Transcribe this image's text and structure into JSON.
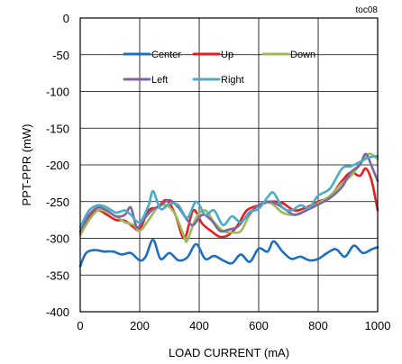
{
  "chart_data": {
    "type": "line",
    "tag": "toc08",
    "title": "",
    "xlabel": "LOAD CURRENT (mA)",
    "ylabel": "PPT-PPR (mW)",
    "xlim": [
      0,
      1000
    ],
    "ylim": [
      -400,
      0
    ],
    "xticks": [
      "0",
      "200",
      "400",
      "600",
      "800",
      "1000"
    ],
    "yticks": [
      "0",
      "-50",
      "-100",
      "-150",
      "-200",
      "-250",
      "-300",
      "-350",
      "-400"
    ],
    "grid": true,
    "legend_placement": "top-inside",
    "series": [
      {
        "name": "Center",
        "color": "#1f6fbf",
        "x": [
          0,
          20,
          50,
          80,
          110,
          140,
          170,
          200,
          220,
          245,
          270,
          300,
          330,
          360,
          390,
          420,
          450,
          480,
          510,
          540,
          570,
          600,
          630,
          650,
          680,
          710,
          740,
          770,
          800,
          830,
          860,
          890,
          920,
          950,
          980,
          1000
        ],
        "y": [
          -338,
          -320,
          -316,
          -318,
          -318,
          -322,
          -320,
          -330,
          -325,
          -302,
          -328,
          -320,
          -330,
          -326,
          -308,
          -328,
          -324,
          -330,
          -334,
          -322,
          -332,
          -314,
          -318,
          -304,
          -318,
          -328,
          -325,
          -330,
          -328,
          -320,
          -315,
          -325,
          -310,
          -320,
          -315,
          -312
        ]
      },
      {
        "name": "Up",
        "color": "#e81e1e",
        "x": [
          0,
          30,
          60,
          90,
          120,
          150,
          180,
          200,
          230,
          260,
          290,
          320,
          350,
          380,
          410,
          440,
          470,
          500,
          530,
          560,
          600,
          640,
          680,
          720,
          760,
          800,
          840,
          880,
          910,
          940,
          960,
          980,
          1000
        ],
        "y": [
          -292,
          -270,
          -262,
          -268,
          -275,
          -276,
          -285,
          -288,
          -262,
          -258,
          -248,
          -268,
          -300,
          -262,
          -280,
          -290,
          -298,
          -295,
          -282,
          -262,
          -255,
          -250,
          -252,
          -262,
          -258,
          -250,
          -243,
          -222,
          -210,
          -215,
          -205,
          -222,
          -262
        ]
      },
      {
        "name": "Down",
        "color": "#9bbb59",
        "x": [
          0,
          30,
          60,
          90,
          120,
          150,
          180,
          200,
          230,
          260,
          290,
          320,
          350,
          360,
          390,
          420,
          450,
          480,
          510,
          540,
          570,
          600,
          640,
          680,
          720,
          760,
          800,
          840,
          880,
          910,
          940,
          970,
          1000
        ],
        "y": [
          -296,
          -275,
          -262,
          -264,
          -270,
          -278,
          -282,
          -290,
          -275,
          -258,
          -255,
          -268,
          -298,
          -303,
          -272,
          -262,
          -278,
          -290,
          -292,
          -290,
          -268,
          -255,
          -252,
          -265,
          -268,
          -262,
          -252,
          -242,
          -225,
          -215,
          -200,
          -185,
          -192
        ]
      },
      {
        "name": "Left",
        "color": "#8064a2",
        "x": [
          0,
          30,
          60,
          90,
          120,
          150,
          170,
          190,
          210,
          240,
          270,
          300,
          330,
          360,
          380,
          410,
          440,
          470,
          500,
          530,
          560,
          600,
          640,
          680,
          720,
          760,
          800,
          840,
          880,
          910,
          940,
          960,
          980,
          1000
        ],
        "y": [
          -290,
          -268,
          -258,
          -262,
          -270,
          -268,
          -258,
          -285,
          -276,
          -262,
          -255,
          -248,
          -258,
          -275,
          -282,
          -268,
          -275,
          -290,
          -288,
          -284,
          -270,
          -255,
          -250,
          -258,
          -268,
          -262,
          -254,
          -245,
          -230,
          -210,
          -200,
          -185,
          -202,
          -222
        ]
      },
      {
        "name": "Right",
        "color": "#4bacc6",
        "x": [
          0,
          30,
          60,
          90,
          120,
          150,
          170,
          200,
          230,
          245,
          270,
          300,
          330,
          360,
          390,
          420,
          450,
          480,
          510,
          540,
          570,
          600,
          630,
          650,
          680,
          710,
          740,
          770,
          800,
          840,
          880,
          910,
          940,
          970,
          1000
        ],
        "y": [
          -285,
          -262,
          -255,
          -258,
          -265,
          -262,
          -268,
          -278,
          -255,
          -236,
          -260,
          -253,
          -255,
          -272,
          -250,
          -268,
          -262,
          -282,
          -270,
          -278,
          -264,
          -260,
          -244,
          -238,
          -258,
          -262,
          -255,
          -258,
          -242,
          -232,
          -205,
          -202,
          -196,
          -190,
          -188
        ]
      }
    ]
  }
}
